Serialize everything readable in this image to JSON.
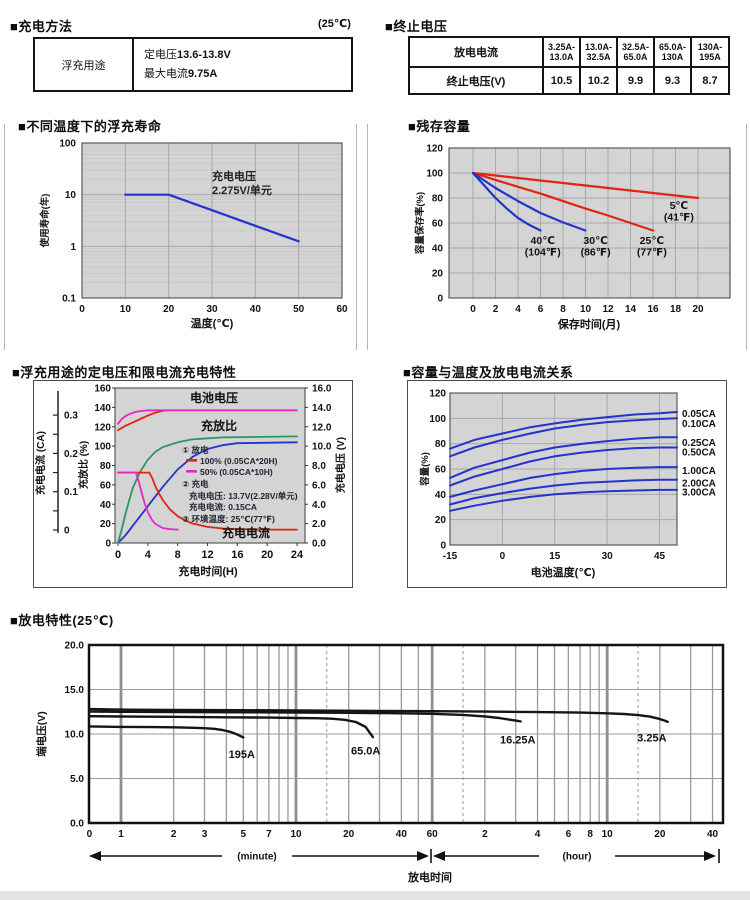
{
  "colors": {
    "blue": "#2334cc",
    "red": "#e02412",
    "magenta": "#e626c8",
    "green": "#2f9463",
    "black_line": "#151515",
    "plot_bg": "#d4d4d4",
    "grid": "#a8a8a8",
    "grid_minor": "#c3c3c3",
    "grid_gray": "#999999",
    "grid_thick": "#8f8f8f"
  },
  "charge_method": {
    "header": "■充电方法",
    "temp_note": "(25℃)",
    "row_label": "浮充用途",
    "line1_label": "定电压",
    "line1_value": "13.6-13.8V",
    "line2_label": "最大电流",
    "line2_value": "9.75A"
  },
  "end_voltage": {
    "header": "■终止电压",
    "row1_label": "放电电流",
    "row2_label": "终止电压(V)",
    "current_ranges": [
      "3.25A-13.0A",
      "13.0A-32.5A",
      "32.5A-65.0A",
      "65.0A-130A",
      "130A-195A"
    ],
    "values": [
      "10.5",
      "10.2",
      "9.9",
      "9.3",
      "8.7"
    ]
  },
  "discharge_footer": {
    "xlabel": "放电时间",
    "minute": "(minute)",
    "hour": "(hour)"
  },
  "chart_data": [
    {
      "id": "float_life",
      "type": "line",
      "title": "■不同温度下的浮充寿命",
      "xlabel": "温度(℃)",
      "ylabel": "使用寿命(年)",
      "xlim": [
        0,
        60
      ],
      "x_ticks": [
        0,
        10,
        20,
        30,
        40,
        50,
        60
      ],
      "y_scale": "log",
      "ylim": [
        0.1,
        100
      ],
      "y_ticks": [
        "0.1",
        "1",
        "10",
        "100"
      ],
      "annotation": [
        "充电电压",
        "2.275V/单元"
      ],
      "series": [
        {
          "name": "float-life",
          "color_key": "blue",
          "x": [
            10,
            20,
            30,
            40,
            50
          ],
          "y": [
            10,
            10,
            5,
            2.5,
            1.25
          ]
        }
      ]
    },
    {
      "id": "residual_capacity",
      "type": "line",
      "title": "■残存容量",
      "xlabel": "保存时间(月)",
      "ylabel": "容量保存率(%)",
      "xlim": [
        -2,
        23
      ],
      "x_ticks": [
        0,
        2,
        4,
        6,
        8,
        10,
        12,
        14,
        16,
        18,
        20
      ],
      "ylim": [
        0,
        120
      ],
      "y_ticks": [
        0,
        20,
        40,
        60,
        80,
        100,
        120
      ],
      "series": [
        {
          "name": "5C",
          "color_key": "red",
          "x": [
            0,
            4,
            8,
            12,
            16,
            20
          ],
          "y": [
            100,
            96,
            92,
            88,
            84,
            80
          ],
          "label": [
            "5℃",
            "(41℉)"
          ],
          "label_at": [
            18.3,
            74
          ]
        },
        {
          "name": "25C",
          "color_key": "red",
          "x": [
            0,
            2,
            4,
            6,
            8,
            10,
            12,
            14,
            16
          ],
          "y": [
            100,
            94.5,
            89,
            83.5,
            77.5,
            71.5,
            66,
            60,
            54
          ],
          "label": [
            "25℃",
            "(77℉)"
          ],
          "label_at": [
            15.9,
            46
          ]
        },
        {
          "name": "30C",
          "color_key": "blue",
          "x": [
            0,
            2,
            4,
            6,
            8,
            10
          ],
          "y": [
            100,
            88,
            77.5,
            68,
            60.5,
            54
          ],
          "label": [
            "30℃",
            "(86℉)"
          ],
          "label_at": [
            10.9,
            46
          ]
        },
        {
          "name": "40C",
          "color_key": "blue",
          "x": [
            0,
            1,
            2,
            3,
            4,
            5,
            6
          ],
          "y": [
            100,
            90,
            80,
            71.5,
            64,
            58.5,
            54
          ],
          "label": [
            "40℃",
            "(104℉)"
          ],
          "label_at": [
            6.2,
            46
          ]
        }
      ]
    },
    {
      "id": "charge_characteristics",
      "type": "line",
      "title": "■浮充用途的定电压和限电流充电特性",
      "xlabel": "充电时间(H)",
      "axis_current_label": "充电电流 (CA)",
      "axis_ratio_label": "充放比 (%)",
      "axis_voltage_label": "充电电压 (V)",
      "xlim": [
        0,
        25
      ],
      "x_ticks": [
        0,
        4,
        8,
        12,
        16,
        20,
        24
      ],
      "ratio_ticks": [
        0,
        20,
        40,
        60,
        80,
        100,
        120,
        140,
        160
      ],
      "voltage_ticks": [
        "0.0",
        "2.0",
        "4.0",
        "6.0",
        "8.0",
        "10.0",
        "12.0",
        "14.0",
        "16.0"
      ],
      "ca_ticks": [
        "0",
        "0.1",
        "0.2",
        "0.3"
      ],
      "text_battery_voltage": "电池电压",
      "text_charge_ratio": "充放比",
      "text_charge_current": "充电电流",
      "legend": {
        "item1": "① 放电",
        "item1a": "100% (0.05CA*20H)",
        "item1b": "50% (0.05CA*10H)",
        "item2": "② 充电",
        "item2a": "充电电压: 13.7V(2.28V/单元)",
        "item2b": "充电电流: 0.15CA",
        "item3": "③ 环境温度: 25℃(77℉)"
      },
      "series": [
        {
          "name": "battery-voltage-100",
          "axis": "V",
          "color_key": "red",
          "x": [
            0,
            1,
            2,
            3,
            4,
            5,
            6,
            6.5
          ],
          "y": [
            11.65,
            12.1,
            12.45,
            12.8,
            13.15,
            13.45,
            13.65,
            13.7
          ]
        },
        {
          "name": "battery-voltage-50",
          "axis": "V",
          "color_key": "magenta",
          "x": [
            0,
            0.5,
            1,
            1.5,
            2,
            2.5,
            3,
            4,
            5,
            24
          ],
          "y": [
            12.3,
            12.8,
            13.1,
            13.3,
            13.45,
            13.55,
            13.62,
            13.7,
            13.7,
            13.7
          ]
        },
        {
          "name": "charge-ratio-100",
          "axis": "pct",
          "color_key": "blue",
          "x": [
            0,
            1,
            2,
            3,
            4,
            6,
            8,
            10,
            12,
            14,
            16,
            24
          ],
          "y": [
            0,
            8,
            18,
            28,
            38,
            58,
            76,
            89,
            97,
            101,
            103,
            104
          ]
        },
        {
          "name": "charge-ratio-50",
          "axis": "pct",
          "color_key": "green",
          "x": [
            0,
            0.5,
            1,
            1.5,
            2,
            3,
            4,
            5,
            6,
            8,
            10,
            14,
            24
          ],
          "y": [
            0,
            14,
            30,
            44,
            57,
            74,
            86,
            94,
            99,
            104,
            107,
            109,
            110
          ]
        },
        {
          "name": "charge-current-100",
          "axis": "CA",
          "color_key": "red",
          "x": [
            0,
            4.2,
            4.6,
            5,
            5.5,
            6,
            7,
            8,
            9,
            10,
            12,
            14,
            16,
            20,
            24
          ],
          "y": [
            0.15,
            0.15,
            0.135,
            0.115,
            0.095,
            0.078,
            0.053,
            0.036,
            0.025,
            0.017,
            0.008,
            0.004,
            0.002,
            0.001,
            0.001
          ]
        },
        {
          "name": "charge-current-50",
          "axis": "CA",
          "color_key": "magenta",
          "x": [
            0,
            2.4,
            2.8,
            3.2,
            3.6,
            4,
            4.5,
            5,
            6,
            7,
            8
          ],
          "y": [
            0.15,
            0.15,
            0.125,
            0.095,
            0.068,
            0.047,
            0.028,
            0.016,
            0.005,
            0.002,
            0.001
          ]
        }
      ]
    },
    {
      "id": "capacity_temperature",
      "type": "line",
      "title": "■容量与温度及放电电流关系",
      "xlabel": "电池温度(℃)",
      "ylabel": "容量(%)",
      "xlim": [
        -15,
        50
      ],
      "x_ticks": [
        -15,
        0,
        15,
        30,
        45
      ],
      "ylim": [
        0,
        120
      ],
      "y_ticks": [
        0,
        20,
        40,
        60,
        80,
        100,
        120
      ],
      "x": [
        -15,
        -8,
        0,
        8,
        15,
        23,
        30,
        38,
        45,
        50
      ],
      "series": [
        {
          "name": "0.05CA",
          "label": "0.05CA",
          "label_pct": 104,
          "y": [
            76,
            83,
            88,
            93,
            96,
            99,
            101,
            103,
            104,
            105
          ]
        },
        {
          "name": "0.10CA",
          "label": "0.10CA",
          "label_pct": 96,
          "y": [
            70,
            77,
            83,
            88,
            92,
            95,
            97,
            98.5,
            99.5,
            100
          ]
        },
        {
          "name": "0.25CA",
          "label": "0.25CA",
          "label_pct": 81,
          "y": [
            53,
            61,
            67,
            73,
            77,
            80,
            82,
            84,
            85,
            85
          ]
        },
        {
          "name": "0.50CA",
          "label": "0.50CA",
          "label_pct": 73.5,
          "y": [
            47,
            54,
            60,
            66,
            70,
            73,
            75,
            76.5,
            77,
            77
          ]
        },
        {
          "name": "1.00CA",
          "label": "1.00CA",
          "label_pct": 59,
          "y": [
            38,
            43,
            48,
            53,
            56,
            58.5,
            60,
            61,
            61.5,
            61.5
          ]
        },
        {
          "name": "2.00CA",
          "label": "2.00CA",
          "label_pct": 49,
          "y": [
            32,
            37,
            41,
            44.5,
            47,
            49,
            50,
            51,
            51.5,
            51.5
          ]
        },
        {
          "name": "3.00CA",
          "label": "3.00CA",
          "label_pct": 42,
          "y": [
            27,
            31,
            35,
            38,
            40,
            41.5,
            42.5,
            43,
            43.5,
            43.5
          ]
        }
      ]
    },
    {
      "id": "discharge",
      "type": "line",
      "title": "■放电特性(25℃)",
      "ylabel": "端电压(V)",
      "ylim": [
        0,
        20
      ],
      "y_ticks": [
        "0.0",
        "5.0",
        "10.0",
        "15.0",
        "20.0"
      ],
      "x_scale": "log-minutes",
      "minute_ticks": [
        [
          0.66,
          "0"
        ],
        [
          1,
          "1"
        ],
        [
          2,
          "2"
        ],
        [
          3,
          "3"
        ],
        [
          5,
          "5"
        ],
        [
          7,
          "7"
        ],
        [
          10,
          "10"
        ],
        [
          20,
          "20"
        ],
        [
          40,
          "40"
        ],
        [
          60,
          "60"
        ]
      ],
      "hour_ticks": [
        [
          120,
          "2"
        ],
        [
          240,
          "4"
        ],
        [
          360,
          "6"
        ],
        [
          480,
          "8"
        ],
        [
          600,
          "10"
        ],
        [
          1200,
          "20"
        ],
        [
          2400,
          "40"
        ]
      ],
      "grid_solid": [
        2,
        3,
        4,
        5,
        6,
        7,
        8,
        9,
        20,
        30,
        40,
        50,
        120,
        180,
        240,
        300,
        360,
        420,
        480,
        540,
        1200,
        1800,
        2400
      ],
      "grid_thick": [
        1,
        10,
        60,
        600
      ],
      "grid_dashed": [
        15,
        90,
        900
      ],
      "y_gridlines": [
        5,
        10,
        15
      ],
      "series": [
        {
          "name": "195A",
          "label": "195A",
          "color_key": "black_line",
          "x": [
            0.66,
            1,
            1.5,
            2,
            2.6,
            3,
            3.4,
            3.8,
            4.2,
            4.6,
            5
          ],
          "y": [
            10.85,
            10.8,
            10.78,
            10.75,
            10.7,
            10.65,
            10.58,
            10.45,
            10.25,
            9.95,
            9.62
          ],
          "label_at": [
            4.9,
            7.7
          ]
        },
        {
          "name": "65.0A",
          "label": "65.0A",
          "color_key": "black_line",
          "x": [
            0.66,
            1,
            2,
            4,
            7,
            10,
            13,
            16,
            19,
            22,
            25,
            27.5
          ],
          "y": [
            12.0,
            11.97,
            11.93,
            11.88,
            11.84,
            11.8,
            11.77,
            11.72,
            11.6,
            11.35,
            10.8,
            9.65
          ],
          "label_at": [
            25,
            8.1
          ]
        },
        {
          "name": "16.25A",
          "label": "16.25A",
          "color_key": "black_line",
          "x": [
            0.66,
            1,
            2,
            5,
            10,
            20,
            40,
            60,
            90,
            120,
            145,
            165,
            180,
            192
          ],
          "y": [
            12.52,
            12.5,
            12.47,
            12.44,
            12.42,
            12.38,
            12.33,
            12.27,
            12.15,
            11.98,
            11.8,
            11.62,
            11.5,
            11.42
          ],
          "label_at": [
            185,
            9.3
          ]
        },
        {
          "name": "3.25A",
          "label": "3.25A",
          "color_key": "black_line",
          "x": [
            0.66,
            1,
            2,
            5,
            10,
            30,
            60,
            120,
            240,
            420,
            600,
            750,
            900,
            1050,
            1180,
            1280,
            1330
          ],
          "y": [
            12.8,
            12.74,
            12.7,
            12.67,
            12.64,
            12.6,
            12.56,
            12.52,
            12.46,
            12.4,
            12.33,
            12.25,
            12.12,
            11.95,
            11.72,
            11.5,
            11.36
          ],
          "label_at": [
            1080,
            9.55
          ]
        }
      ]
    }
  ]
}
